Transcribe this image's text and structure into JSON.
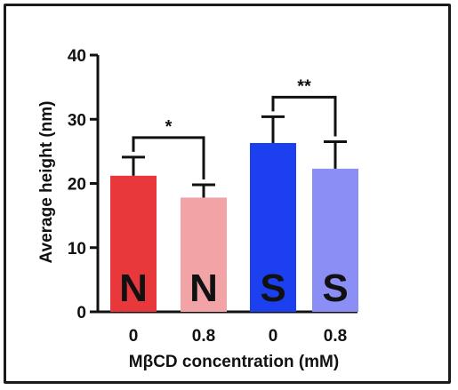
{
  "chart_data": {
    "type": "bar",
    "title": "",
    "xlabel": "MβCD concentration (mM)",
    "ylabel": "Average height  (nm)",
    "ylim": [
      0,
      40
    ],
    "yticks": [
      0,
      10,
      20,
      30,
      40
    ],
    "grid": false,
    "categories": [
      "0",
      "0.8",
      "0",
      "0.8"
    ],
    "values": [
      21.2,
      17.8,
      26.3,
      22.3
    ],
    "errors": [
      2.9,
      2.0,
      4.1,
      4.2
    ],
    "bar_labels": [
      "N",
      "N",
      "S",
      "S"
    ],
    "colors": [
      "#e8383c",
      "#f2a3a6",
      "#1c3ff0",
      "#8a8ef5"
    ],
    "significance": [
      {
        "between": [
          0,
          1
        ],
        "label": "*"
      },
      {
        "between": [
          2,
          3
        ],
        "label": "**"
      }
    ]
  }
}
